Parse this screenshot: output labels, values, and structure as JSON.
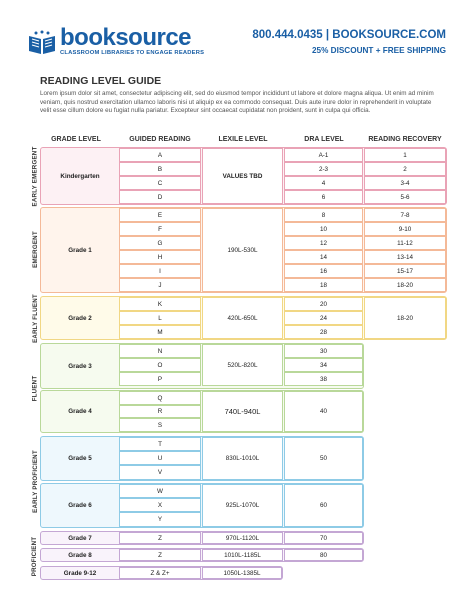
{
  "header": {
    "logo_text": "booksource",
    "tagline": "CLASSROOM LIBRARIES TO ENGAGE READERS",
    "contact": "800.444.0435  |  BOOKSOURCE.COM",
    "promo": "25% DISCOUNT + FREE SHIPPING"
  },
  "title": "READING LEVEL GUIDE",
  "intro": "Lorem ipsum dolor sit amet, consectetur adipiscing elit, sed do eiusmod tempor incididunt ut labore et dolore magna aliqua. Ut enim ad minim veniam, quis nostrud exercitation ullamco laboris nisi ut aliquip ex ea commodo consequat. Duis aute irure dolor in reprehenderit in voluptate velit esse cillum dolore eu fugiat nulla pariatur. Excepteur sint occaecat cupidatat non proident, sunt in culpa qui officia.",
  "columns": [
    "GRADE LEVEL",
    "GUIDED READING",
    "LEXILE LEVEL",
    "DRA LEVEL",
    "READING RECOVERY"
  ],
  "stages": [
    "EARLY EMERGENT",
    "EMERGENT",
    "EARLY FLUENT",
    "FLUENT",
    "EARLY PROFICIENT",
    "PROFICIENT"
  ],
  "colors": {
    "pink_border": "#e9a3b6",
    "pink_fill": "#fdf1f4",
    "orange_border": "#f4b998",
    "orange_fill": "#fff4ec",
    "yellow_border": "#f1d784",
    "yellow_fill": "#fffbe9",
    "green_border": "#b9d89a",
    "green_fill": "#f6fbef",
    "blue_border": "#8ecbe6",
    "blue_fill": "#eef8fd",
    "purple_border": "#c4a7d4",
    "purple_fill": "#f9f3fb"
  },
  "rows": {
    "kindergarten": {
      "grade": "Kindergarten",
      "guided": [
        "A",
        "B",
        "C",
        "D"
      ],
      "lexile": "VALUES TBD",
      "dra": [
        "A-1",
        "2-3",
        "4",
        "6"
      ],
      "recovery": [
        "1",
        "2",
        "3-4",
        "5-6"
      ]
    },
    "grade1": {
      "grade": "Grade 1",
      "guided": [
        "E",
        "F",
        "G",
        "H",
        "I",
        "J"
      ],
      "lexile": "190L-530L",
      "dra": [
        "8",
        "10",
        "12",
        "14",
        "16",
        "18"
      ],
      "recovery": [
        "7-8",
        "9-10",
        "11-12",
        "13-14",
        "15-17",
        "18-20"
      ]
    },
    "grade2": {
      "grade": "Grade 2",
      "guided": [
        "K",
        "L",
        "M"
      ],
      "lexile": "420L-650L",
      "dra": [
        "20",
        "24",
        "28"
      ],
      "recovery": "18-20"
    },
    "grade3": {
      "grade": "Grade 3",
      "guided": [
        "N",
        "O",
        "P"
      ],
      "lexile": "520L-820L",
      "dra": [
        "30",
        "34",
        "38"
      ]
    },
    "grade4": {
      "grade": "Grade 4",
      "guided": [
        "Q",
        "R",
        "S"
      ],
      "lexile": "740L-940L",
      "dra": "40"
    },
    "grade5": {
      "grade": "Grade 5",
      "guided": [
        "T",
        "U",
        "V"
      ],
      "lexile": "830L-1010L",
      "dra": "50"
    },
    "grade6": {
      "grade": "Grade 6",
      "guided": [
        "W",
        "X",
        "Y"
      ],
      "lexile": "925L-1070L",
      "dra": "60"
    },
    "grade7": {
      "grade": "Grade 7",
      "guided": "Z",
      "lexile": "970L-1120L",
      "dra": "70"
    },
    "grade8": {
      "grade": "Grade 8",
      "guided": "Z",
      "lexile": "1010L-1185L",
      "dra": "80"
    },
    "grade912": {
      "grade": "Grade 9-12",
      "guided": "Z & Z+",
      "lexile": "1050L-1385L"
    }
  }
}
